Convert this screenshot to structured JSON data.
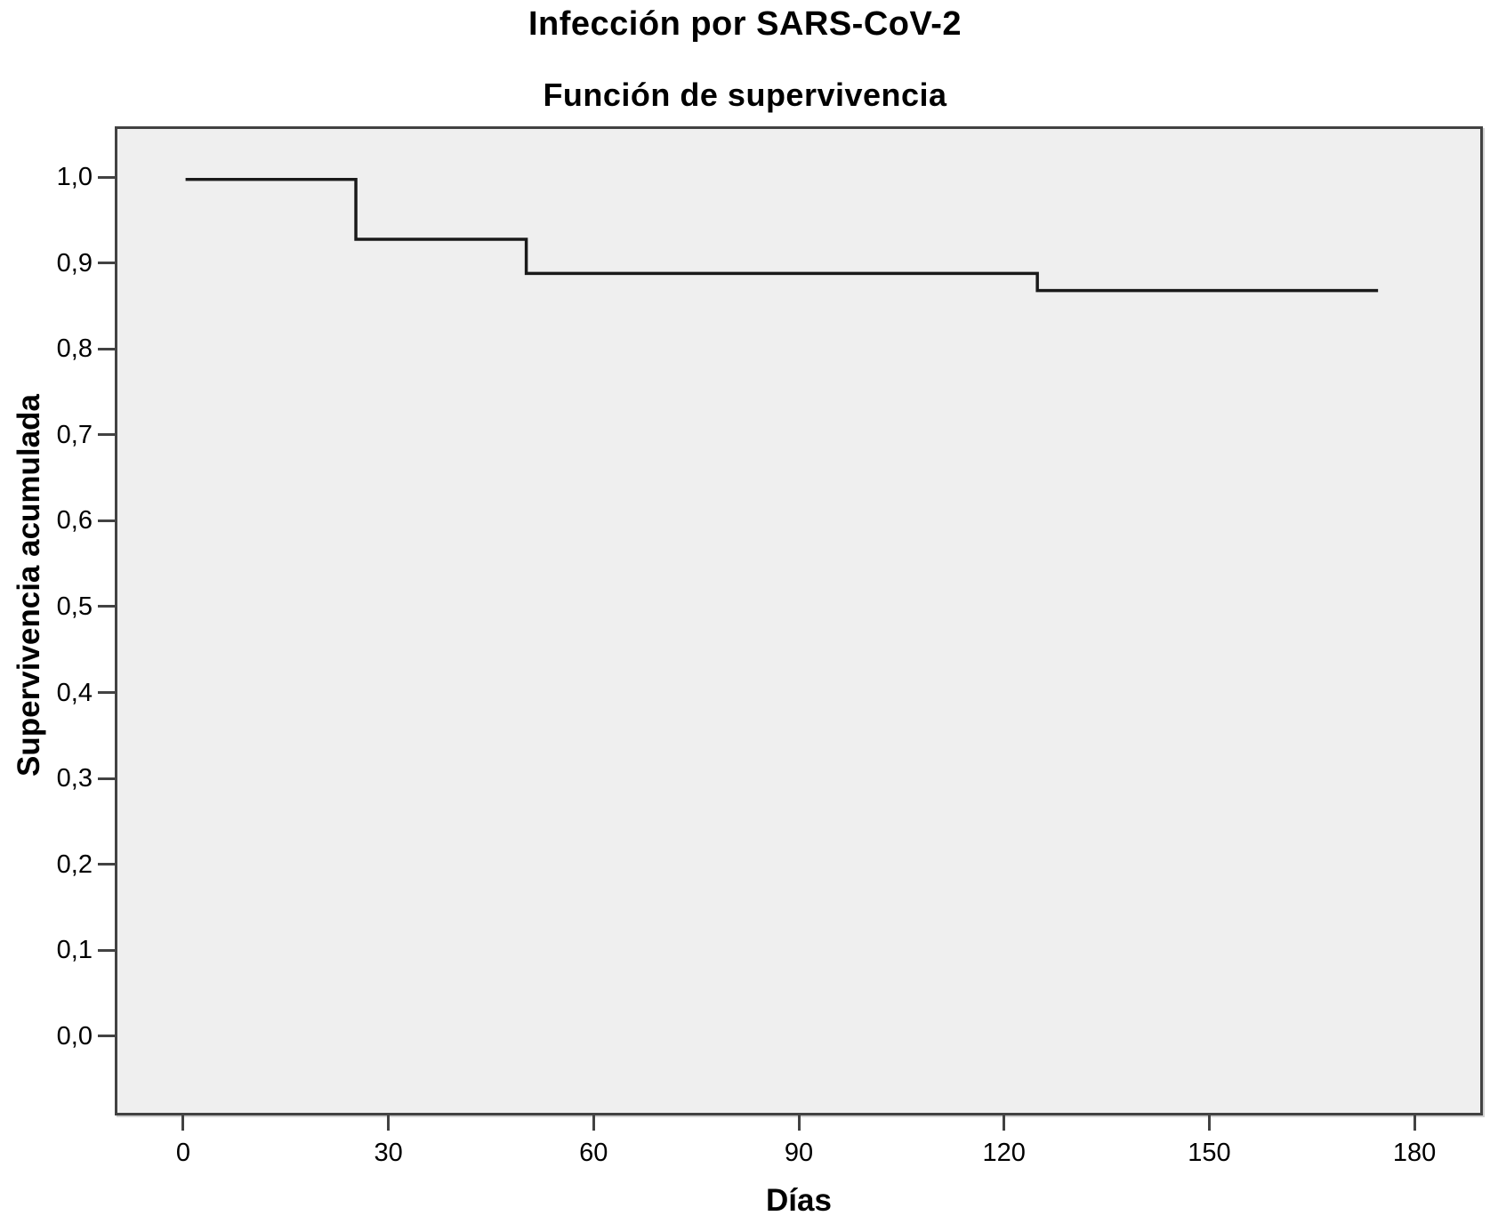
{
  "title": "Infección por SARS-CoV-2",
  "subtitle": "Función de supervivencia",
  "chart_data": {
    "type": "line",
    "subtype": "kaplan-meier-step",
    "title": "Infección por SARS-CoV-2",
    "subtitle": "Función de supervivencia",
    "xlabel": "Días",
    "ylabel": "Supervivencia acumulada",
    "xlim": [
      0,
      180
    ],
    "ylim": [
      0.0,
      1.0
    ],
    "xticks": [
      0,
      30,
      60,
      90,
      120,
      150,
      180
    ],
    "ytick_values": [
      0.0,
      0.1,
      0.2,
      0.3,
      0.4,
      0.5,
      0.6,
      0.7,
      0.8,
      0.9,
      1.0
    ],
    "ytick_labels": [
      "0,0",
      "0,1",
      "0,2",
      "0,3",
      "0,4",
      "0,5",
      "0,6",
      "0,7",
      "0,8",
      "0,9",
      "1,0"
    ],
    "grid": false,
    "legend": "none",
    "series": [
      {
        "name": "Función de supervivencia",
        "steps": [
          {
            "x": 0,
            "y": 1.0
          },
          {
            "x": 25,
            "y": 0.93
          },
          {
            "x": 50,
            "y": 0.89
          },
          {
            "x": 125,
            "y": 0.87
          }
        ],
        "x_end": 175
      }
    ],
    "colors": {
      "line": "#1a1a1a",
      "plot_bg": "#efefef",
      "frame": "#424242",
      "page_bg": "#ffffff",
      "text": "#000000"
    }
  }
}
